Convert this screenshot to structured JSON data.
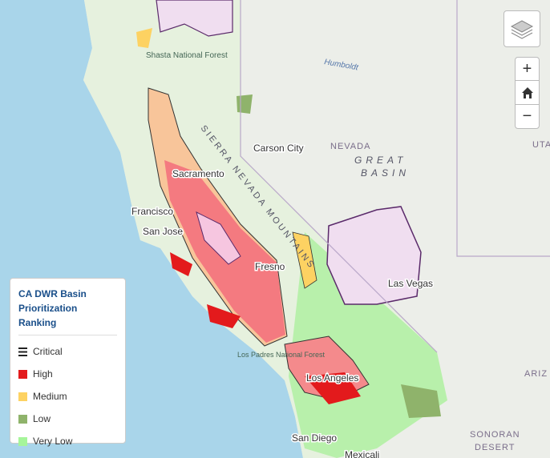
{
  "map": {
    "labels": [
      "Carson City",
      "NEVADA",
      "GREAT",
      "BASIN",
      "Las Vegas",
      "San Diego",
      "Los Angeles",
      "San Jose",
      "Francisco",
      "Sacramento",
      "Fresno",
      "SIERRA NEVADA MOUNTAINS",
      "Shasta National Forest",
      "Humboldt",
      "UTAH",
      "ARIZ",
      "SONORAN",
      "DESERT",
      "Mexicali",
      "Los Padres National Forest"
    ]
  },
  "controls": {
    "zoom_in": "+",
    "zoom_out": "−"
  },
  "legend": {
    "title": "CA DWR Basin Prioritization Ranking",
    "items": [
      {
        "label": "Critical",
        "color": "#222222",
        "icon": "lines"
      },
      {
        "label": "High",
        "color": "#e31a1c"
      },
      {
        "label": "Medium",
        "color": "#fdd262"
      },
      {
        "label": "Low",
        "color": "#8fb36b"
      },
      {
        "label": "Very Low",
        "color": "#a6f59a"
      }
    ]
  }
}
